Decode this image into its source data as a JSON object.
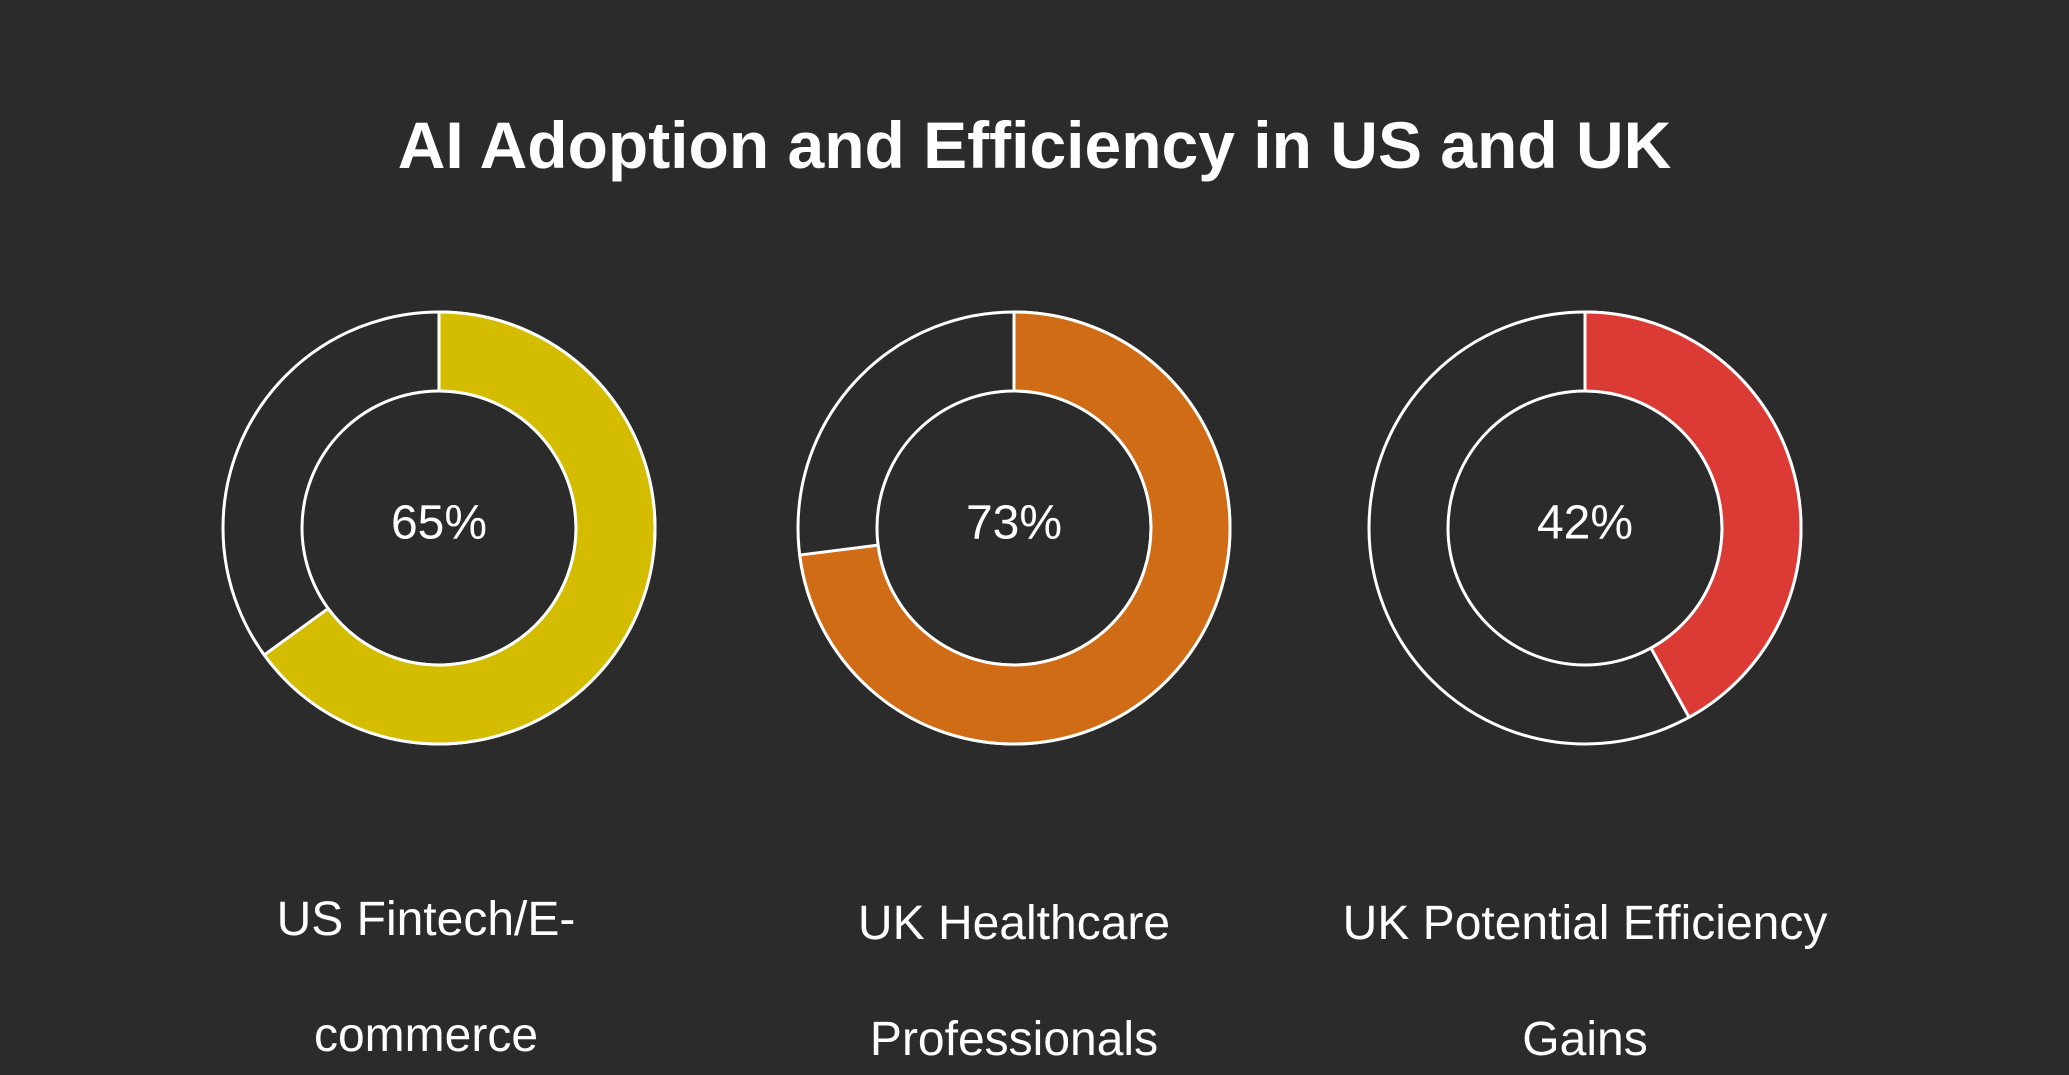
{
  "chart_data": {
    "type": "donut",
    "title": "AI Adoption and Efficiency in US and UK",
    "ring_outline_color": "#ffffff",
    "items": [
      {
        "label": "US Fintech/E-commerce",
        "caption_lines": [
          "US Fintech/E-",
          "commerce"
        ],
        "value": 65,
        "display": "65%",
        "color": "#d4bd00"
      },
      {
        "label": "UK Healthcare Professionals",
        "caption_lines": [
          "UK Healthcare",
          "Professionals"
        ],
        "value": 73,
        "display": "73%",
        "color": "#cf6c15"
      },
      {
        "label": "UK Potential Efficiency Gains",
        "caption_lines": [
          "UK Potential Efficiency",
          "Gains"
        ],
        "value": 42,
        "display": "42%",
        "color": "#dc3a35"
      }
    ]
  }
}
